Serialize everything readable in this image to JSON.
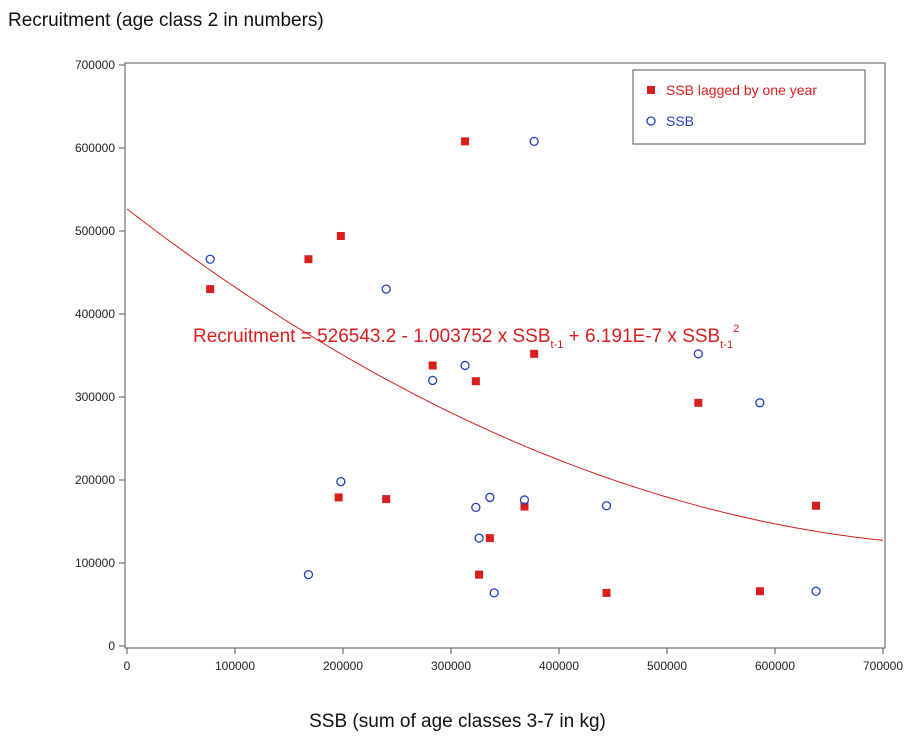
{
  "chart_data": {
    "type": "scatter",
    "title": "",
    "ylabel": "Recruitment (age class 2 in numbers)",
    "xlabel": "SSB (sum of age classes 3-7 in kg)",
    "xlim": [
      0,
      700000
    ],
    "ylim": [
      0,
      700000
    ],
    "x_ticks": [
      0,
      100000,
      200000,
      300000,
      400000,
      500000,
      600000,
      700000
    ],
    "y_ticks": [
      0,
      100000,
      200000,
      300000,
      400000,
      500000,
      600000,
      700000
    ],
    "grid": false,
    "legend_position": "top-right",
    "series": [
      {
        "name": "SSB lagged by one year",
        "marker": "filled-square",
        "color": "#d81e1e",
        "points": [
          [
            77000,
            430000
          ],
          [
            168000,
            466000
          ],
          [
            198000,
            494000
          ],
          [
            313000,
            608000
          ],
          [
            283000,
            338000
          ],
          [
            323000,
            319000
          ],
          [
            377000,
            352000
          ],
          [
            529000,
            293000
          ],
          [
            196000,
            179000
          ],
          [
            240000,
            177000
          ],
          [
            368000,
            168000
          ],
          [
            336000,
            130000
          ],
          [
            326000,
            86000
          ],
          [
            444000,
            64000
          ],
          [
            586000,
            66000
          ],
          [
            638000,
            169000
          ]
        ]
      },
      {
        "name": "SSB",
        "marker": "open-circle",
        "color": "#1f3fbf",
        "points": [
          [
            77000,
            466000
          ],
          [
            198000,
            198000
          ],
          [
            240000,
            430000
          ],
          [
            377000,
            608000
          ],
          [
            283000,
            320000
          ],
          [
            313000,
            338000
          ],
          [
            529000,
            352000
          ],
          [
            586000,
            293000
          ],
          [
            168000,
            86000
          ],
          [
            323000,
            167000
          ],
          [
            336000,
            179000
          ],
          [
            368000,
            176000
          ],
          [
            326000,
            130000
          ],
          [
            340000,
            64000
          ],
          [
            444000,
            169000
          ],
          [
            638000,
            66000
          ]
        ]
      }
    ],
    "fit": {
      "color": "#d81e1e",
      "intercept": 526543.2,
      "linear": -1.003752,
      "quadratic": 6.191e-07,
      "equation": {
        "lhs": "Recruitment = 526543.2  - 1.003752 x SSB",
        "sub1": "t-1",
        "mid": " + 6.191E-7 x  SSB",
        "sub2": "t-1",
        "sup2": "2"
      }
    }
  }
}
